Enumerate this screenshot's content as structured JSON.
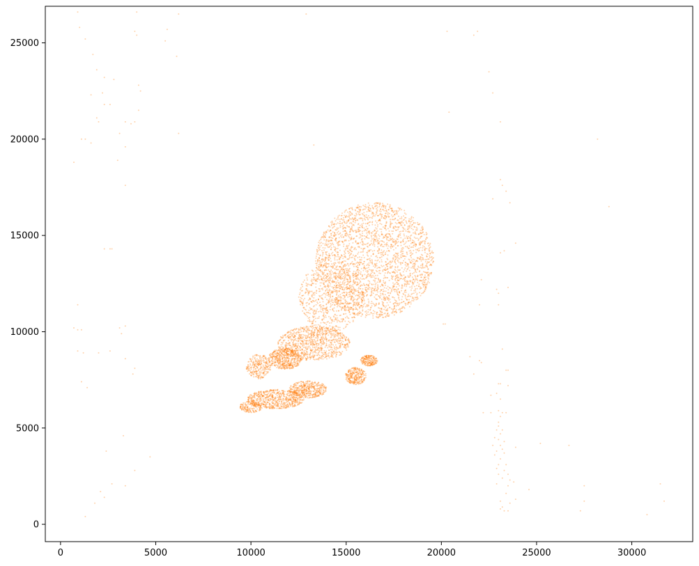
{
  "chart_data": {
    "type": "scatter",
    "title": "",
    "xlabel": "",
    "ylabel": "",
    "xlim": [
      -800,
      33200
    ],
    "ylim": [
      -900,
      26900
    ],
    "xticks": [
      0,
      5000,
      10000,
      15000,
      20000,
      25000,
      30000
    ],
    "yticks": [
      0,
      5000,
      10000,
      15000,
      20000,
      25000
    ],
    "xtick_labels": [
      "0",
      "5000",
      "10000",
      "15000",
      "20000",
      "25000",
      "30000"
    ],
    "ytick_labels": [
      "0",
      "5000",
      "10000",
      "15000",
      "20000",
      "25000"
    ],
    "grid": false,
    "legend": "none",
    "point_color": "#ff7f0e",
    "point_alpha": 0.35,
    "series": [
      {
        "values_description_excluded": true,
        "points": [
          [
            900,
            26600
          ],
          [
            4000,
            26600
          ],
          [
            6200,
            26500
          ],
          [
            12900,
            26500
          ],
          [
            1000,
            25800
          ],
          [
            3900,
            25600
          ],
          [
            5600,
            25700
          ],
          [
            20300,
            25600
          ],
          [
            21900,
            25600
          ],
          [
            21700,
            25400
          ],
          [
            4000,
            25400
          ],
          [
            1300,
            25200
          ],
          [
            5500,
            25100
          ],
          [
            1700,
            24400
          ],
          [
            6100,
            24300
          ],
          [
            1900,
            23600
          ],
          [
            22500,
            23500
          ],
          [
            2300,
            23200
          ],
          [
            2800,
            23100
          ],
          [
            4100,
            22800
          ],
          [
            4200,
            22500
          ],
          [
            1600,
            22300
          ],
          [
            2200,
            22400
          ],
          [
            22700,
            22400
          ],
          [
            2300,
            21800
          ],
          [
            2600,
            21800
          ],
          [
            4100,
            21500
          ],
          [
            20400,
            21400
          ],
          [
            1900,
            21100
          ],
          [
            2000,
            20900
          ],
          [
            3700,
            20800
          ],
          [
            3400,
            20900
          ],
          [
            3900,
            20900
          ],
          [
            23100,
            20900
          ],
          [
            1100,
            20000
          ],
          [
            1300,
            20000
          ],
          [
            1600,
            19800
          ],
          [
            3100,
            20300
          ],
          [
            6200,
            20300
          ],
          [
            28200,
            20000
          ],
          [
            3400,
            19600
          ],
          [
            13300,
            19700
          ],
          [
            3000,
            18900
          ],
          [
            700,
            18800
          ],
          [
            3400,
            17600
          ],
          [
            23100,
            17900
          ],
          [
            23200,
            17600
          ],
          [
            23400,
            17300
          ],
          [
            22700,
            16900
          ],
          [
            23600,
            16700
          ],
          [
            28800,
            16500
          ],
          [
            2300,
            14300
          ],
          [
            2600,
            14300
          ],
          [
            2700,
            14300
          ],
          [
            23300,
            14200
          ],
          [
            23100,
            14100
          ],
          [
            23900,
            14600
          ],
          [
            900,
            11400
          ],
          [
            22100,
            12700
          ],
          [
            22900,
            12200
          ],
          [
            23000,
            12000
          ],
          [
            22000,
            11400
          ],
          [
            23000,
            11400
          ],
          [
            23500,
            12300
          ],
          [
            700,
            10200
          ],
          [
            900,
            10100
          ],
          [
            1100,
            10100
          ],
          [
            3100,
            10200
          ],
          [
            3400,
            10300
          ],
          [
            3200,
            9900
          ],
          [
            20100,
            10400
          ],
          [
            20200,
            10400
          ],
          [
            900,
            9000
          ],
          [
            1200,
            8900
          ],
          [
            2000,
            8900
          ],
          [
            2600,
            9000
          ],
          [
            3400,
            8600
          ],
          [
            21500,
            8700
          ],
          [
            22000,
            8500
          ],
          [
            22100,
            8400
          ],
          [
            23200,
            9100
          ],
          [
            3900,
            8100
          ],
          [
            1100,
            7400
          ],
          [
            1400,
            7100
          ],
          [
            3800,
            7800
          ],
          [
            21700,
            7800
          ],
          [
            23400,
            8000
          ],
          [
            23500,
            8000
          ],
          [
            23000,
            7300
          ],
          [
            23100,
            7300
          ],
          [
            23500,
            7200
          ],
          [
            22600,
            6700
          ],
          [
            22900,
            6800
          ],
          [
            23100,
            6500
          ],
          [
            23000,
            5900
          ],
          [
            22200,
            5800
          ],
          [
            22600,
            5800
          ],
          [
            23200,
            5800
          ],
          [
            23400,
            5800
          ],
          [
            23100,
            5600
          ],
          [
            23000,
            5300
          ],
          [
            23000,
            5100
          ],
          [
            22900,
            4900
          ],
          [
            23200,
            4900
          ],
          [
            23100,
            4700
          ],
          [
            22800,
            4500
          ],
          [
            23000,
            4400
          ],
          [
            23300,
            4300
          ],
          [
            23100,
            4100
          ],
          [
            22700,
            4100
          ],
          [
            23200,
            3900
          ],
          [
            22900,
            3800
          ],
          [
            23300,
            3700
          ],
          [
            22800,
            3600
          ],
          [
            23100,
            3400
          ],
          [
            23000,
            3100
          ],
          [
            23400,
            3100
          ],
          [
            22900,
            2900
          ],
          [
            23300,
            2800
          ],
          [
            23000,
            2600
          ],
          [
            23500,
            2600
          ],
          [
            23200,
            2400
          ],
          [
            23600,
            2300
          ],
          [
            22900,
            2100
          ],
          [
            23500,
            2000
          ],
          [
            23800,
            2200
          ],
          [
            23400,
            1600
          ],
          [
            23900,
            1300
          ],
          [
            23100,
            1200
          ],
          [
            23600,
            1100
          ],
          [
            23200,
            900
          ],
          [
            23300,
            700
          ],
          [
            23500,
            700
          ],
          [
            23100,
            800
          ],
          [
            3300,
            4600
          ],
          [
            4700,
            3500
          ],
          [
            2400,
            3800
          ],
          [
            25200,
            4200
          ],
          [
            26700,
            4100
          ],
          [
            23900,
            4000
          ],
          [
            2700,
            2100
          ],
          [
            3400,
            2000
          ],
          [
            3900,
            2800
          ],
          [
            2100,
            1700
          ],
          [
            2300,
            1400
          ],
          [
            1800,
            1100
          ],
          [
            1300,
            400
          ],
          [
            24600,
            1800
          ],
          [
            27500,
            2000
          ],
          [
            27500,
            1200
          ],
          [
            27300,
            700
          ],
          [
            31500,
            2100
          ],
          [
            31700,
            1200
          ],
          [
            30800,
            500
          ]
        ],
        "clusters": [
          {
            "cx": 16500,
            "cy": 13700,
            "rx": 3100,
            "ry": 3000,
            "n": 2600
          },
          {
            "cx": 14200,
            "cy": 11800,
            "rx": 1700,
            "ry": 1800,
            "n": 700
          },
          {
            "cx": 13300,
            "cy": 9400,
            "rx": 1900,
            "ry": 900,
            "n": 900
          },
          {
            "cx": 11800,
            "cy": 8600,
            "rx": 900,
            "ry": 550,
            "n": 500
          },
          {
            "cx": 10400,
            "cy": 8200,
            "rx": 650,
            "ry": 650,
            "n": 260
          },
          {
            "cx": 11300,
            "cy": 6500,
            "rx": 1500,
            "ry": 500,
            "n": 650
          },
          {
            "cx": 13000,
            "cy": 7000,
            "rx": 1000,
            "ry": 450,
            "n": 420
          },
          {
            "cx": 15500,
            "cy": 7700,
            "rx": 550,
            "ry": 450,
            "n": 280
          },
          {
            "cx": 16200,
            "cy": 8500,
            "rx": 450,
            "ry": 280,
            "n": 200
          },
          {
            "cx": 10000,
            "cy": 6100,
            "rx": 600,
            "ry": 300,
            "n": 160
          }
        ]
      }
    ]
  }
}
